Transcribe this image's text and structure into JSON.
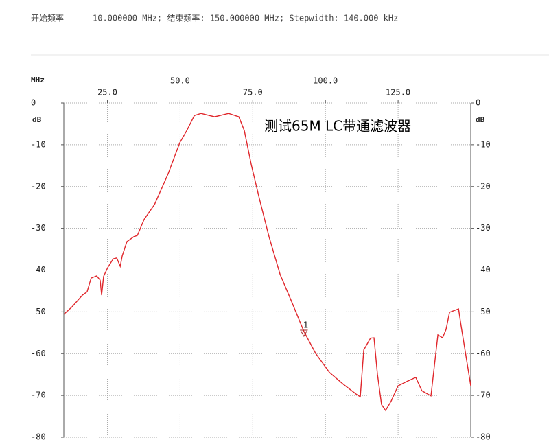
{
  "header": {
    "start_label": "开始频率",
    "info": "10.000000 MHz; 结束频率: 150.000000 MHz; Stepwidth: 140.000 kHz"
  },
  "chart_data": {
    "type": "line",
    "title": "测试65M LC带通滤波器",
    "x_unit": "MHz",
    "y_unit": "dB",
    "color": "#e0262b",
    "x": [
      10,
      12.8,
      16.4,
      18,
      19.4,
      21.3,
      22.5,
      23,
      23.7,
      25.1,
      27,
      28.2,
      29.4,
      30.1,
      31.7,
      34.1,
      35.3,
      37.6,
      41.2,
      45.9,
      49.9,
      52.3,
      54.9,
      57.2,
      61.9,
      66.7,
      70.2,
      72.1,
      74.5,
      77.3,
      80.6,
      84.4,
      88.4,
      92.6,
      96.6,
      101.4,
      106.1,
      110.8,
      112,
      113.2,
      115.5,
      116.7,
      117.9,
      119.3,
      120.7,
      122.6,
      125,
      128.5,
      131.1,
      133.2,
      136.3,
      138.7,
      140.3,
      141.5,
      142.7,
      145.8,
      146.7,
      150
    ],
    "values": [
      -50.6,
      -48.8,
      -46,
      -45.2,
      -41.9,
      -41.4,
      -42.4,
      -46,
      -41.5,
      -39.4,
      -37.3,
      -37.1,
      -39.1,
      -36.6,
      -33.2,
      -32,
      -31.7,
      -27.9,
      -24.3,
      -16.9,
      -9.5,
      -6.6,
      -3,
      -2.5,
      -3.3,
      -2.5,
      -3.3,
      -6.6,
      -14.8,
      -23,
      -32,
      -41,
      -47.6,
      -54.7,
      -59.9,
      -64.5,
      -67.3,
      -69.8,
      -70.3,
      -59.1,
      -56.3,
      -56.2,
      -64.9,
      -72.2,
      -73.6,
      -71.4,
      -67.7,
      -66.5,
      -65.7,
      -68.9,
      -70.1,
      -55.5,
      -56.2,
      -54.2,
      -50.1,
      -49.3,
      -53.4,
      -67.7
    ],
    "xlim": [
      10,
      150
    ],
    "ylim": [
      -80,
      0
    ],
    "xticks": [
      {
        "value": 25,
        "label": "25.0"
      },
      {
        "value": 50,
        "label": "50.0"
      },
      {
        "value": 75,
        "label": "75.0"
      },
      {
        "value": 100,
        "label": "100.0"
      },
      {
        "value": 125,
        "label": "125.0"
      }
    ],
    "yticks": [
      0,
      -10,
      -20,
      -30,
      -40,
      -50,
      -60,
      -70,
      -80
    ],
    "grid": true,
    "marker": {
      "label": "1",
      "x": 92.6,
      "y": -54.7
    }
  }
}
